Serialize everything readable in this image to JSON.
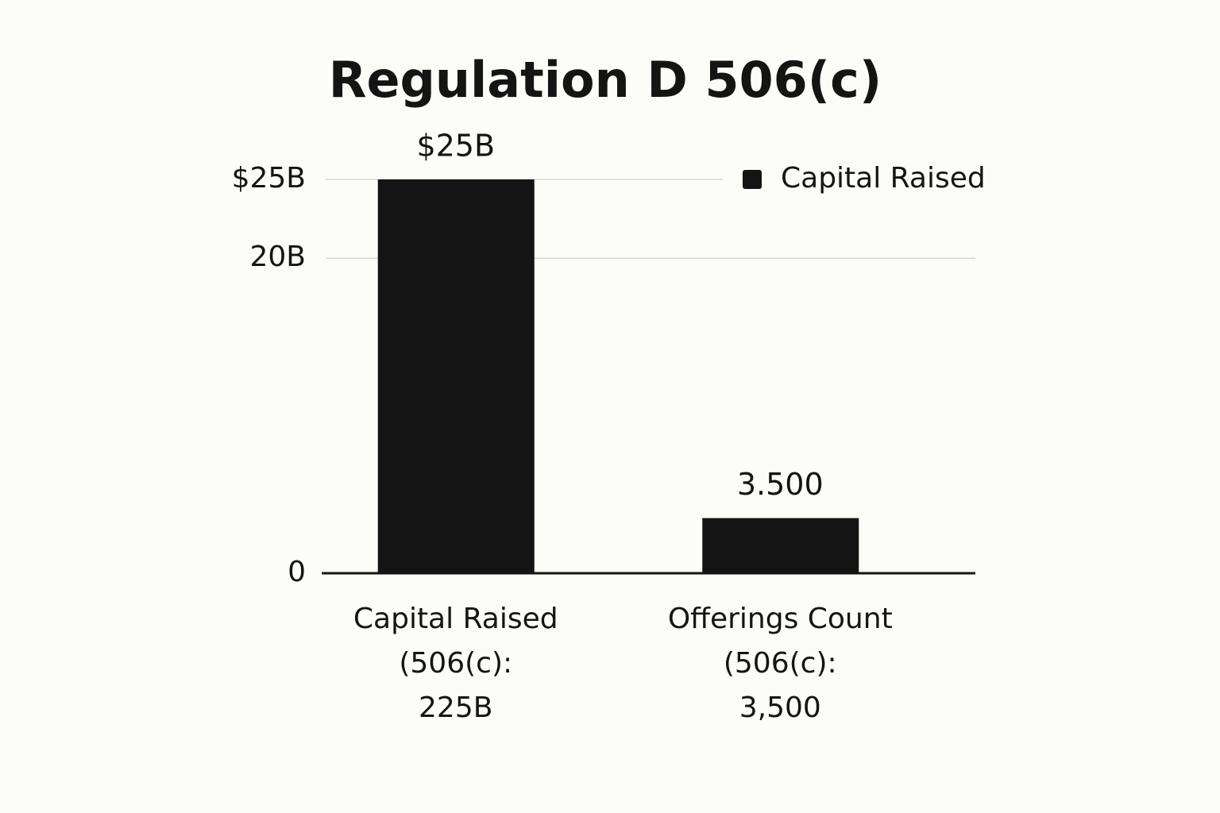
{
  "chart_data": {
    "type": "bar",
    "title": "Regulation D 506(c)",
    "categories": [
      "Capital Raised\n(506(c):\n225B",
      "Offerings Count\n(506(c):\n3,500"
    ],
    "series": [
      {
        "name": "Capital Raised",
        "color": "#141414",
        "values": [
          25,
          3.5
        ],
        "value_labels": [
          "$25B",
          "3.500"
        ]
      }
    ],
    "ylim": [
      0,
      25
    ],
    "yticks": [
      0,
      {
        "value": 20,
        "label": "20B"
      },
      {
        "value": 25,
        "label": "$25B"
      }
    ],
    "grid": true,
    "legend": "upper right"
  }
}
